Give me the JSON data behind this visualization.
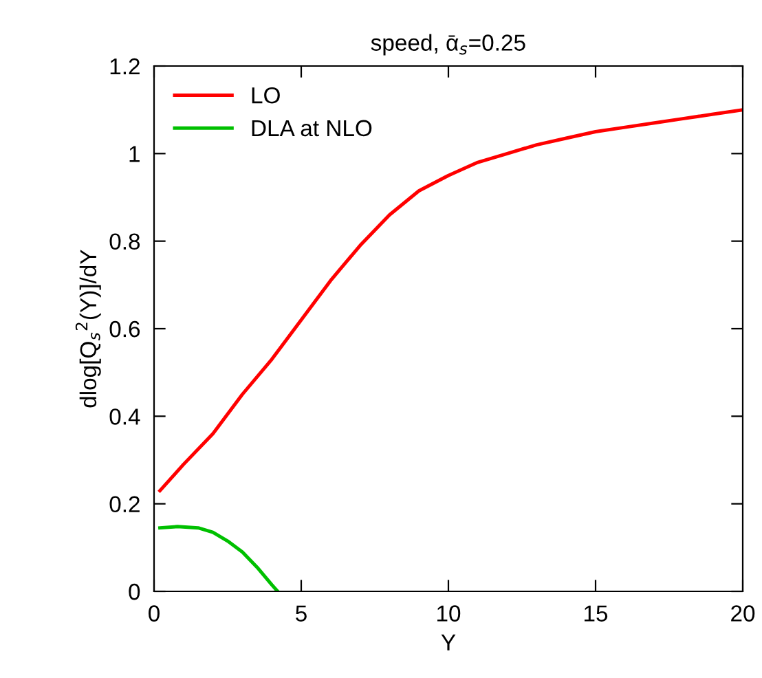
{
  "chart_data": {
    "type": "line",
    "title": "speed, ᾱ$_{s}$=0.25",
    "xlabel": "Y",
    "ylabel": "dlog[Q$_{s}$$^{2}$(Y)]/dY",
    "xlim": [
      0,
      20
    ],
    "ylim": [
      0,
      1.2
    ],
    "xticks": [
      0,
      5,
      10,
      15,
      20
    ],
    "yticks": [
      0,
      0.2,
      0.4,
      0.6,
      0.8,
      1,
      1.2
    ],
    "grid": false,
    "legend": "top left",
    "marker": "none",
    "line_style": "solid",
    "series": [
      {
        "name": "LO",
        "color": "#ff0000",
        "x": [
          0.2,
          1,
          2,
          3,
          4,
          5,
          6,
          7,
          8,
          9,
          10,
          11,
          12,
          13,
          14,
          15,
          16,
          17,
          18,
          19,
          20
        ],
        "values": [
          0.23,
          0.29,
          0.36,
          0.45,
          0.53,
          0.62,
          0.71,
          0.79,
          0.86,
          0.915,
          0.95,
          0.98,
          1.0,
          1.02,
          1.035,
          1.05,
          1.06,
          1.07,
          1.08,
          1.09,
          1.1
        ]
      },
      {
        "name": "DLA at NLO",
        "color": "#00c000",
        "x": [
          0.2,
          0.8,
          1.5,
          2,
          2.5,
          3,
          3.5,
          4,
          4.2
        ],
        "values": [
          0.145,
          0.148,
          0.145,
          0.135,
          0.115,
          0.09,
          0.055,
          0.015,
          0
        ]
      }
    ]
  }
}
